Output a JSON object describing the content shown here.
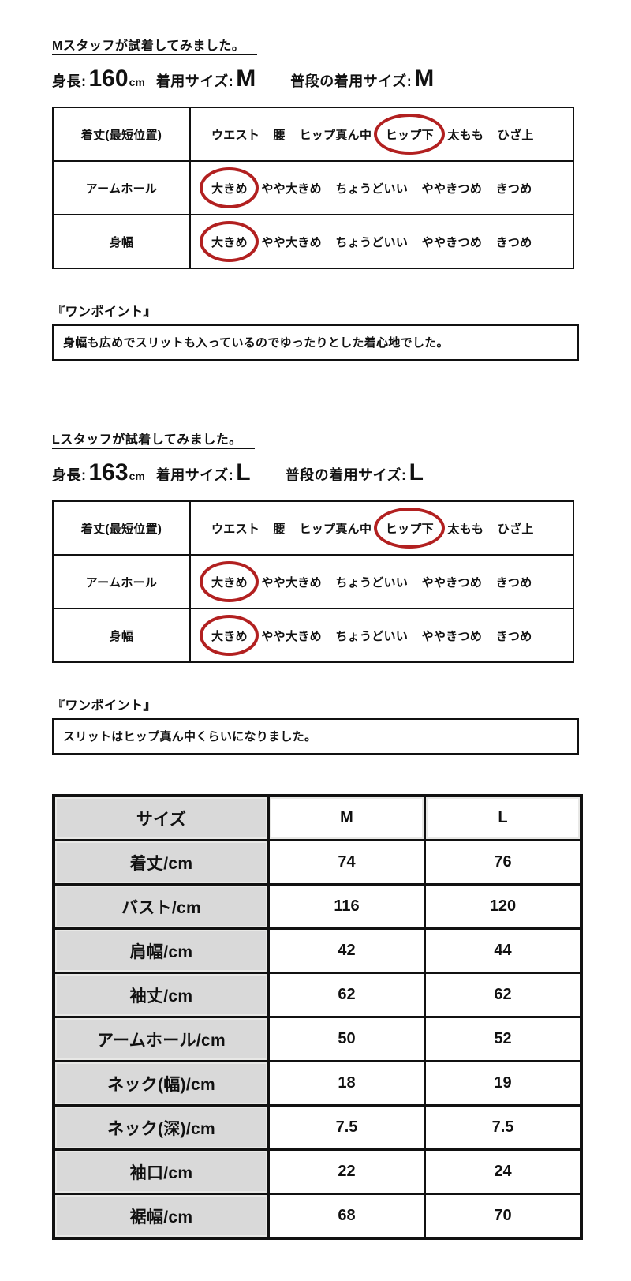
{
  "accent_color": "#b22020",
  "sections": [
    {
      "id": "m",
      "heading": "Mスタッフが試着してみました。",
      "stats": {
        "height_label": "身長:",
        "height_value": "160",
        "height_unit": "cm",
        "wearing_label": "着用サイズ:",
        "wearing_value": "M",
        "usual_label": "普段の着用サイズ:",
        "usual_value": "M"
      },
      "fit_table": {
        "rows": [
          {
            "label": "着丈(最短位置)",
            "options": [
              "ウエスト",
              "腰",
              "ヒップ真ん中",
              "ヒップ下",
              "太もも",
              "ひざ上"
            ],
            "selected_index": 3,
            "selected_option": "ヒップ下"
          },
          {
            "label": "アームホール",
            "options": [
              "大きめ",
              "やや大きめ",
              "ちょうどいい",
              "ややきつめ",
              "きつめ"
            ],
            "selected_index": 0,
            "selected_option": "大きめ"
          },
          {
            "label": "身幅",
            "options": [
              "大きめ",
              "やや大きめ",
              "ちょうどいい",
              "ややきつめ",
              "きつめ"
            ],
            "selected_index": 0,
            "selected_option": "大きめ"
          }
        ]
      },
      "onepoint_label": "『ワンポイント』",
      "onepoint_text": "身幅も広めでスリットも入っているのでゆったりとした着心地でした。"
    },
    {
      "id": "l",
      "heading": "Lスタッフが試着してみました。",
      "stats": {
        "height_label": "身長:",
        "height_value": "163",
        "height_unit": "cm",
        "wearing_label": "着用サイズ:",
        "wearing_value": "L",
        "usual_label": "普段の着用サイズ:",
        "usual_value": "L"
      },
      "fit_table": {
        "rows": [
          {
            "label": "着丈(最短位置)",
            "options": [
              "ウエスト",
              "腰",
              "ヒップ真ん中",
              "ヒップ下",
              "太もも",
              "ひざ上"
            ],
            "selected_index": 3,
            "selected_option": "ヒップ下"
          },
          {
            "label": "アームホール",
            "options": [
              "大きめ",
              "やや大きめ",
              "ちょうどいい",
              "ややきつめ",
              "きつめ"
            ],
            "selected_index": 0,
            "selected_option": "大きめ"
          },
          {
            "label": "身幅",
            "options": [
              "大きめ",
              "やや大きめ",
              "ちょうどいい",
              "ややきつめ",
              "きつめ"
            ],
            "selected_index": 0,
            "selected_option": "大きめ"
          }
        ]
      },
      "onepoint_label": "『ワンポイント』",
      "onepoint_text": "スリットはヒップ真ん中くらいになりました。"
    }
  ],
  "size_table": {
    "header": [
      "サイズ",
      "M",
      "L"
    ],
    "rows": [
      {
        "label": "着丈/cm",
        "m": "74",
        "l": "76"
      },
      {
        "label": "バスト/cm",
        "m": "116",
        "l": "120"
      },
      {
        "label": "肩幅/cm",
        "m": "42",
        "l": "44"
      },
      {
        "label": "袖丈/cm",
        "m": "62",
        "l": "62"
      },
      {
        "label": "アームホール/cm",
        "m": "50",
        "l": "52"
      },
      {
        "label": "ネック(幅)/cm",
        "m": "18",
        "l": "19"
      },
      {
        "label": "ネック(深)/cm",
        "m": "7.5",
        "l": "7.5"
      },
      {
        "label": "袖口/cm",
        "m": "22",
        "l": "24"
      },
      {
        "label": "裾幅/cm",
        "m": "68",
        "l": "70"
      }
    ]
  }
}
